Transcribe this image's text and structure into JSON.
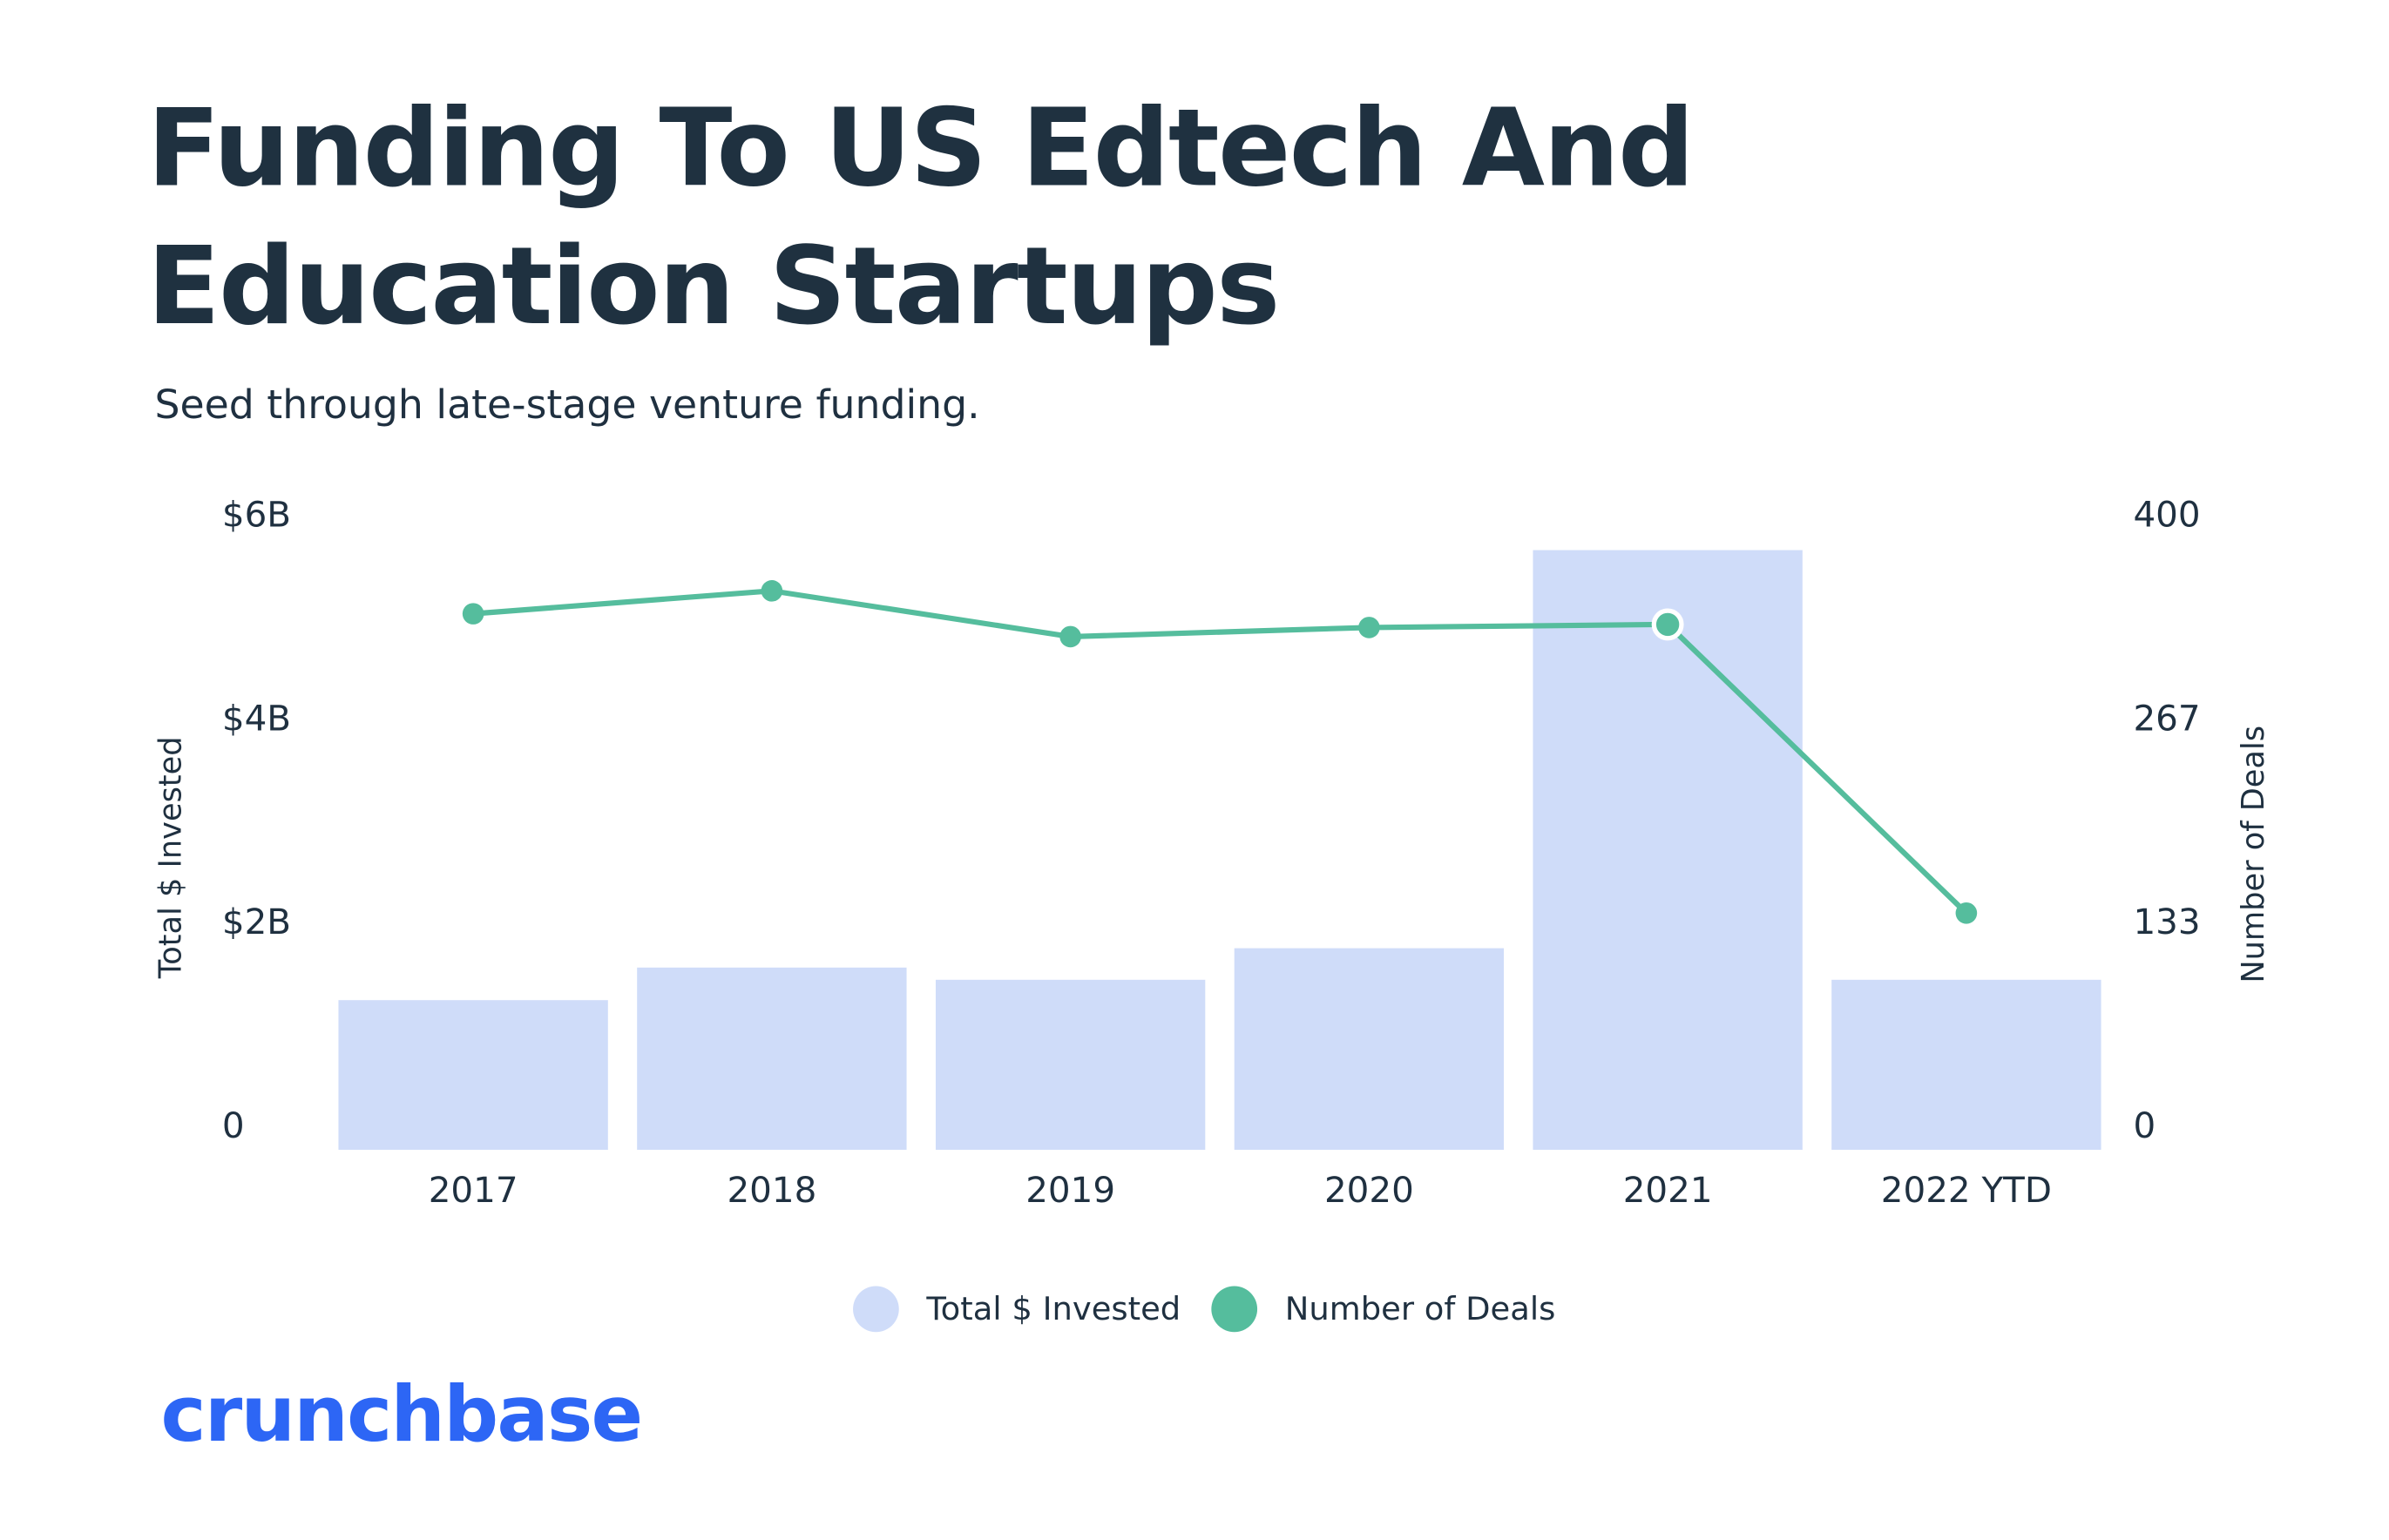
{
  "title": "Funding To US Edtech And Education Startups",
  "subtitle": "Seed through late-stage venture funding.",
  "logo": "crunchbase",
  "colors": {
    "bar": "#cfdcf9",
    "line": "#55bd9d",
    "title": "#1f3140",
    "logo": "#2d66f5"
  },
  "chart_data": {
    "type": "bar+line",
    "title": "Funding To US Edtech And Education Startups",
    "categories": [
      "2017",
      "2018",
      "2019",
      "2020",
      "2021",
      "2022 YTD"
    ],
    "series": [
      {
        "name": "Total $ Invested",
        "type": "bar",
        "axis": "left",
        "unit": "$B",
        "values": [
          1.47,
          1.79,
          1.67,
          1.98,
          5.89,
          1.67
        ]
      },
      {
        "name": "Number of Deals",
        "type": "line",
        "axis": "right",
        "values": [
          351,
          366,
          336,
          342,
          344,
          155
        ]
      }
    ],
    "ylabel": "Total $ Invested",
    "ylim": [
      0,
      6
    ],
    "yticks": [
      "0",
      "$2B",
      "$4B",
      "$6B"
    ],
    "y2label": "Number of Deals",
    "y2lim": [
      0,
      400
    ],
    "y2ticks": [
      "0",
      "133",
      "267",
      "400"
    ],
    "legend": [
      "Total $ Invested",
      "Number of Deals"
    ],
    "legend_position": "bottom",
    "grid": false
  }
}
